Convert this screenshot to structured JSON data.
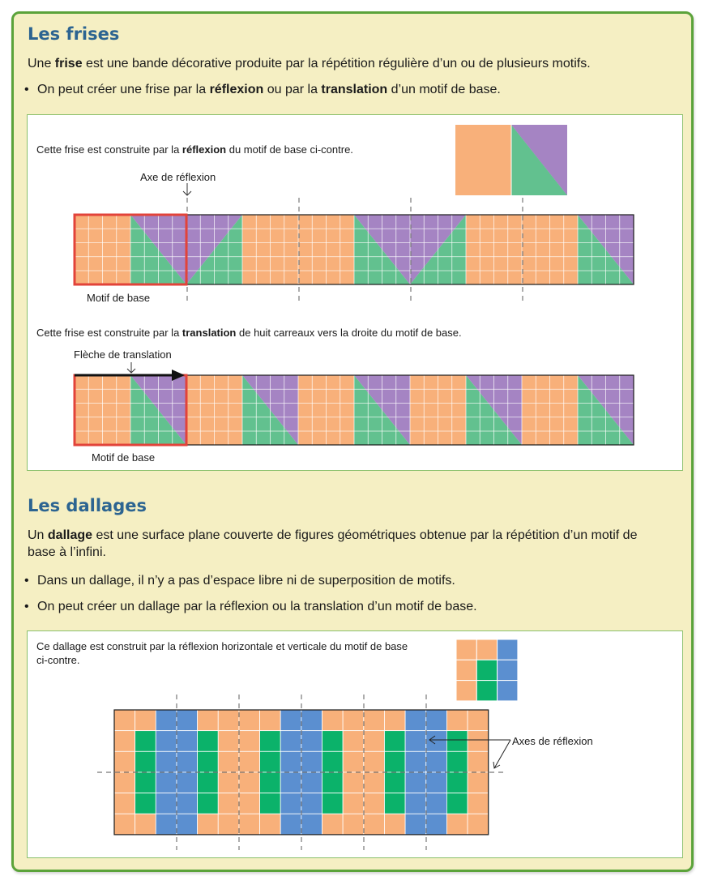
{
  "colors": {
    "orange": "#f8b07a",
    "purple": "#a584c3",
    "green": "#62c18f",
    "blue": "#5b8fd0",
    "dark_green": "#0bb26a",
    "red": "#e2433a",
    "title": "#2c6491"
  },
  "frises": {
    "title": "Les frises",
    "def": {
      "pre": "Une ",
      "bold": "frise",
      "post": " est une bande décorative produite par la répétition régulière d’un ou de plusieurs motifs."
    },
    "bullet": {
      "pre": "On peut créer une frise par la ",
      "b1": "réflexion",
      "mid": " ou par la ",
      "b2": "translation",
      "post": " d’un motif de base."
    },
    "reflexion": {
      "caption_pre": "Cette frise est construite par la ",
      "caption_bold": "réflexion",
      "caption_post": " du motif de base ci-contre.",
      "axis_label": "Axe de réflexion",
      "motif_label": "Motif de base"
    },
    "translation": {
      "caption_pre": "Cette frise est construite par la ",
      "caption_bold": "translation",
      "caption_post": " de huit carreaux vers la droite du motif de base.",
      "arrow_label": "Flèche de translation",
      "motif_label": "Motif de base"
    }
  },
  "dallages": {
    "title": "Les dallages",
    "def_pre": "Un ",
    "def_bold": "dallage",
    "def_post": " est une surface plane couverte de figures géométriques obtenue par la répétition d’un motif de base à l’infini.",
    "bullet1": "Dans un dallage, il n’y a pas d’espace libre ni de superposition de motifs.",
    "bullet2": "On peut créer un dallage par la réflexion ou la translation d’un motif de base.",
    "caption": "Ce dallage est construit par la réflexion horizontale et verticale du motif de base ci-contre.",
    "axes_label": "Axes de réflexion",
    "motif": [
      [
        "orange",
        "orange",
        "blue"
      ],
      [
        "orange",
        "dark_green",
        "blue"
      ],
      [
        "orange",
        "dark_green",
        "blue"
      ]
    ]
  }
}
